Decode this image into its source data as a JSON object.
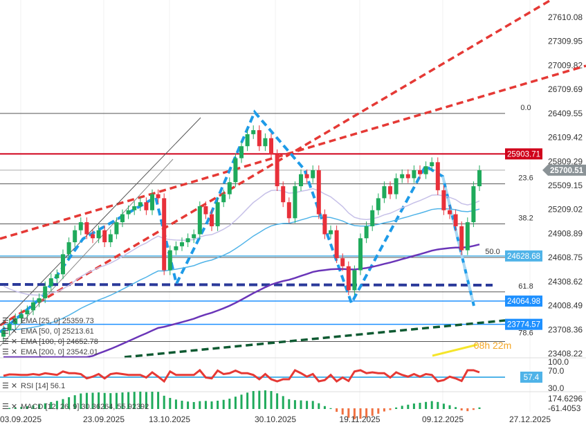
{
  "chart_data": {
    "type": "candlestick",
    "price_axis": {
      "ticks": [
        27610.08,
        27309.95,
        27009.82,
        26709.69,
        26409.55,
        26109.42,
        25809.29,
        25509.15,
        25209.02,
        24908.89,
        24608.75,
        24308.62,
        24008.49,
        23708.36,
        23408.22
      ],
      "range": [
        23350,
        27650
      ]
    },
    "date_ticks": [
      "03.09.2025",
      "23.09.2025",
      "13.10.2025",
      "30.10.2025",
      "19.11.2025",
      "09.12.2025",
      "27.12.2025"
    ],
    "closes": [
      23700,
      23780,
      23850,
      23900,
      23950,
      24050,
      24100,
      24250,
      24350,
      24400,
      24650,
      24800,
      24950,
      25050,
      24900,
      24850,
      24950,
      24800,
      24900,
      25050,
      25150,
      25200,
      25250,
      25300,
      25200,
      25400,
      25350,
      24450,
      24700,
      24750,
      24800,
      24850,
      24900,
      25250,
      25150,
      25000,
      25300,
      25400,
      25550,
      25850,
      26000,
      26150,
      26200,
      26000,
      26100,
      25900,
      25500,
      25300,
      25100,
      25500,
      25650,
      25600,
      25700,
      25150,
      24900,
      24950,
      24600,
      24500,
      24200,
      24450,
      24850,
      25000,
      25200,
      25350,
      25500,
      25400,
      25600,
      25650,
      25600,
      25700,
      25650,
      25750,
      25800,
      25450,
      25200,
      25150,
      25000,
      24700,
      25050,
      25500,
      25700
    ],
    "current_price": "25700.51",
    "levels": [
      {
        "label": "25903.71",
        "value": 25903.71,
        "color": "#d0021b"
      },
      {
        "label": "24628.68",
        "value": 24628.68,
        "color": "#4fb3e8"
      },
      {
        "label": "24064.98",
        "value": 24064.98,
        "color": "#1e90ff"
      },
      {
        "label": "23774.57",
        "value": 23774.57,
        "color": "#1e90ff"
      }
    ],
    "fib_levels": [
      {
        "label": "0.0",
        "value": 26409.55
      },
      {
        "label": "23.6",
        "value": 25530
      },
      {
        "label": "38.2",
        "value": 25030
      },
      {
        "label": "50.0",
        "value": 24610
      },
      {
        "label": "61.8",
        "value": 24180
      },
      {
        "label": "78.6",
        "value": 23560
      }
    ],
    "indicators": {
      "ema25": "EMA [25, 0] 25359.73",
      "ema50": "EMA [50, 0] 25213.61",
      "ema100": "EMA [100, 0] 24652.78",
      "ema200": "EMA [200, 0] 23542.01",
      "rsi": "RSI [14] 56.1",
      "rsi_ticks": [
        "100.0",
        "70.0",
        "30.0"
      ],
      "rsi_tag": "57.4",
      "macd": "MACD [12, 26, 9] 30.36264, 55.92392",
      "macd_ticks": [
        "174.6296",
        "-61.4053"
      ]
    },
    "countdown": {
      "h": "08h",
      "m": "22m"
    },
    "colors": {
      "up": "#1faa5b",
      "down": "#e8303a",
      "channel": "#e53935",
      "ema_purple": "#6a35b8",
      "ema_blue": "#4fb3e8",
      "ema_lav": "#c6c0e8",
      "support": "#2b3a9a",
      "trend_green": "#0f5a32"
    }
  }
}
